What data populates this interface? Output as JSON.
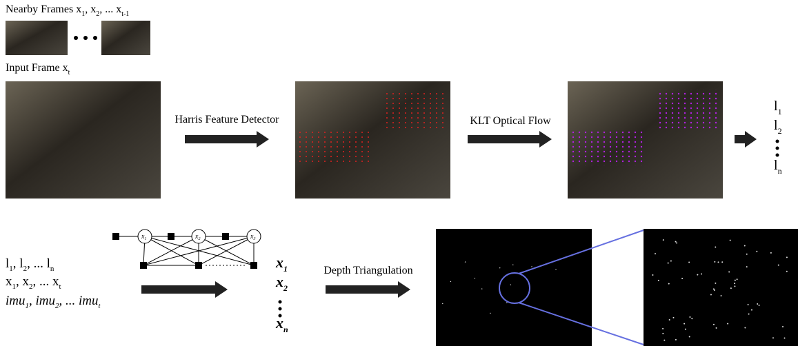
{
  "top": {
    "nearby_frames": [
      "Nearby Frames x",
      "1",
      ", x",
      "2",
      ", ... x",
      "t-1"
    ],
    "input_frame": [
      "Input Frame x",
      "t"
    ],
    "harris": "Harris Feature Detector",
    "klt": "KLT Optical Flow",
    "landmarks": [
      [
        "l",
        "1"
      ],
      [
        "l",
        "2"
      ],
      [
        "l",
        "n"
      ]
    ]
  },
  "bottom": {
    "inputs": [
      [
        "l",
        "1",
        ", l",
        "2",
        ", ... l",
        "n"
      ],
      [
        "x",
        "1",
        ", x",
        "2",
        ", ... x",
        "t"
      ],
      [
        "imu",
        "1",
        ", imu",
        "2",
        ", ... imu",
        "t"
      ]
    ],
    "factor_nodes": [
      [
        "x",
        "1"
      ],
      [
        "x",
        "2"
      ],
      [
        "x",
        "3"
      ]
    ],
    "outputs": [
      [
        "x",
        "1"
      ],
      [
        "x",
        "2"
      ],
      [
        "x",
        "n"
      ]
    ],
    "depth": "Depth Triangulation"
  }
}
